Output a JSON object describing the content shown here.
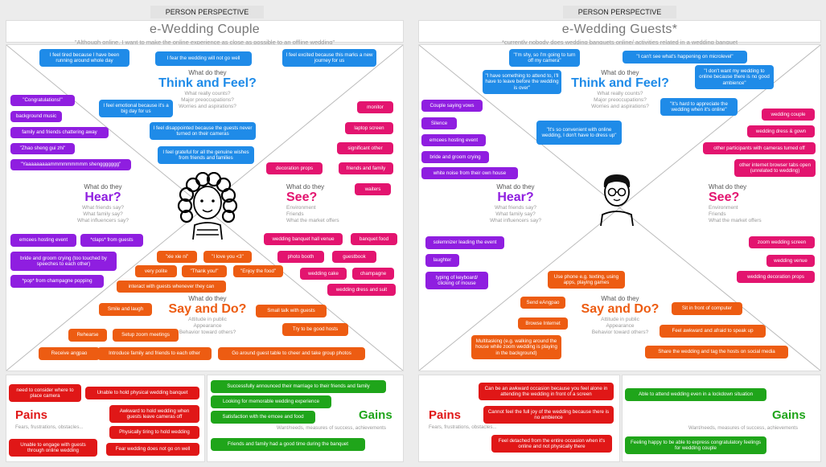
{
  "left": {
    "tag": "PERSON PERSPECTIVE",
    "title": "e-Wedding Couple",
    "subtitle": "\"Although online, I want to make the online experience as close as possible to an offline wedding\"",
    "think": {
      "q": "What do they",
      "big": "Think and Feel?",
      "s1": "What really counts?",
      "s2": "Major preoccupations?",
      "s3": "Worries and aspirations?"
    },
    "hear": {
      "q": "What do they",
      "big": "Hear?",
      "s1": "What friends say?",
      "s2": "What family say?",
      "s3": "What influencers say?"
    },
    "see": {
      "q": "What do they",
      "big": "See?",
      "s1": "Environment",
      "s2": "Friends",
      "s3": "What the market offers"
    },
    "say": {
      "q": "What do they",
      "big": "Say and Do?",
      "s1": "Attitude in public",
      "s2": "Appearance",
      "s3": "Behavior toward others?"
    },
    "notes_think": [
      "I feel tired because I have been running around whole day",
      "I fear the wedding will not go well",
      "I feel excited because this marks a new journey for us",
      "I feel emotional because it's a big day for us",
      "I feel disappointed because the guests never turned on their cameras",
      "I feel grateful for all the genuine wishes from friends and families"
    ],
    "notes_hear_top": [
      "\"Congratulations!\"",
      "background music",
      "family and friends chattering away",
      "\"Zhao sheng gui zhi\"",
      "\"Yaaaaaaaaammmmmmmmm shenggggggg\""
    ],
    "notes_see": [
      "monitor",
      "laptop screen",
      "significant other",
      "friends and family",
      "decoration props",
      "waiters",
      "wedding banquet hall venue",
      "banquet food",
      "photo booth",
      "guestbook",
      "wedding cake",
      "champagne",
      "wedding dress and suit"
    ],
    "notes_hear_bot": [
      "emcees hosting event",
      "*claps* from guests",
      "bride and groom crying (too touched by speeches to each other)",
      "*pop* from champagne popping"
    ],
    "notes_say": [
      "\"xie xie ni\"",
      "\"I love you <3\"",
      "very polite",
      "\"Thank you!\"",
      "\"Enjoy the food\"",
      "interact with guests whenever they can",
      "Smile and laugh",
      "Small talk with guests",
      "Try to be good hosts",
      "Rehearse",
      "Setup zoom meetings",
      "Receive angpao",
      "Introduce family and friends to each other",
      "Go around guest table to cheer and take group photos"
    ],
    "pains_title": "Pains",
    "pains_sub": "Fears, frustrations, obstacles...",
    "pains": [
      "need to consider where to place camera",
      "Unable to hold physical wedding banquet",
      "Awkward to hold wedding when guests leave cameras off",
      "Physically tiring to hold wedding",
      "Unable to engage with guests through online wedding",
      "Fear wedding does not go on well"
    ],
    "gains_title": "Gains",
    "gains_sub": "Want/needs, measures of success, achievements",
    "gains": [
      "Successfully announced their marriage to their friends and family",
      "Looking for memorable wedding experience",
      "Satisfaction with the emcee and food",
      "Friends and family had a good time during the banquet"
    ]
  },
  "right": {
    "tag": "PERSON PERSPECTIVE",
    "title": "e-Wedding Guests*",
    "subtitle": "*currently nobody does wedding banquets online/ activities related in a wedding banquet",
    "think": {
      "q": "What do they",
      "big": "Think and Feel?",
      "s1": "What really counts?",
      "s2": "Major preoccupations?",
      "s3": "Worries and aspirations?"
    },
    "hear": {
      "q": "What do they",
      "big": "Hear?",
      "s1": "What friends say?",
      "s2": "What family say?",
      "s3": "What influencers say?"
    },
    "see": {
      "q": "What do they",
      "big": "See?",
      "s1": "Environment",
      "s2": "Friends",
      "s3": "What the market offers"
    },
    "say": {
      "q": "What do they",
      "big": "Say and Do?",
      "s1": "Attitude in public",
      "s2": "Appearance",
      "s3": "Behavior toward others?"
    },
    "notes_think": [
      "\"I'm shy, so I'm going to turn off my camera\"",
      "\"I can't see what's happening on microlevel\"",
      "\"I have something to attend to, I'll have to leave before the wedding is over\"",
      "\"I don't want my wedding to online because there is no good ambience\"",
      "\"It's hard to appreciate the wedding when it's online\"",
      "\"It's so convenient with online wedding, I don't have to dress up\""
    ],
    "notes_hear_top": [
      "Couple saying vows",
      "Silence",
      "emcees hosting event",
      "bride and groom crying",
      "white noise from their own house"
    ],
    "notes_see": [
      "wedding couple",
      "wedding dress & gown",
      "other participants with cameras turned off",
      "other internet browser tabs open (unrelated to wedding)",
      "zoom wedding screen",
      "wedding venue",
      "wedding decoration props"
    ],
    "notes_hear_bot": [
      "solemnizer leading the event",
      "laughter",
      "typing of keyboard/ clicking of mouse"
    ],
    "notes_say": [
      "Use phone e.g. texting, using apps, playing games",
      "Send eAngpao",
      "Browse Internet",
      "Multitasking (e.g. walking around the house while zoom wedding is playing in the background)",
      "Sit in front of computer",
      "Feel awkward and afraid to speak up",
      "Share the wedding and tag the hosts on social media"
    ],
    "pains_title": "Pains",
    "pains_sub": "Fears, frustrations, obstacles...",
    "pains": [
      "Can be an awkward occasion because you feel alone in attending the wedding in front of a screen",
      "Cannot feel the full joy of the wedding because there is no ambience",
      "Feel detached from the entire occasion when it's online and not physically there"
    ],
    "gains_title": "Gains",
    "gains_sub": "Want/needs, measures of success, achievements",
    "gains": [
      "Able to attend wedding even in a lockdown situation",
      "Feeling happy to be able to express congratulatory feelings for wedding couple"
    ]
  }
}
